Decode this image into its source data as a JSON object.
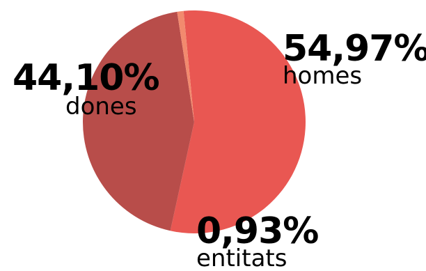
{
  "chart_data": {
    "type": "pie",
    "slices": [
      {
        "name": "homes",
        "value": 54.97,
        "label": "54,97%",
        "color": "#e95752"
      },
      {
        "name": "dones",
        "value": 44.1,
        "label": "44,10%",
        "color": "#b84d4a"
      },
      {
        "name": "entitats",
        "value": 0.93,
        "label": "0,93%",
        "color": "#f28a6e"
      }
    ],
    "start_angle_deg": -90,
    "direction": "clockwise"
  }
}
